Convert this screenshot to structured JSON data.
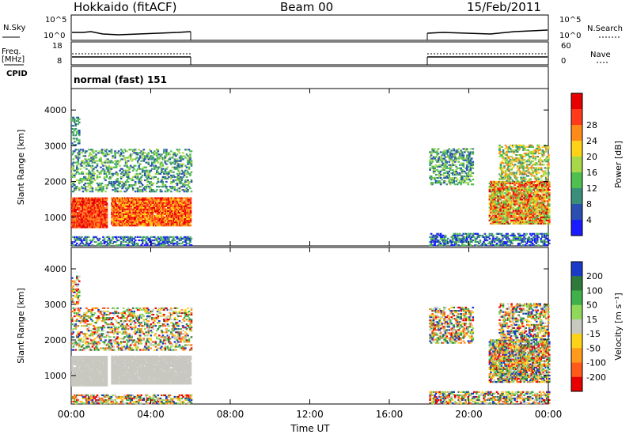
{
  "header": {
    "station": "Hokkaido (fitACF)",
    "beam": "Beam 00",
    "date": "15/Feb/2011"
  },
  "sky_panel": {
    "left_label": "N.Sky",
    "right_label": "N.Search",
    "left_ticks": [
      "10^5",
      "10^0"
    ],
    "right_ticks": [
      "10^5",
      "10^0"
    ]
  },
  "freq_panel": {
    "left_label_1": "Freq.",
    "left_label_2": "[MHz]",
    "right_label": "Nave",
    "left_ticks": [
      "18",
      "8"
    ],
    "right_ticks": [
      "60",
      "0"
    ]
  },
  "cpid": {
    "label": "CPID",
    "value": "normal (fast) 151"
  },
  "chart_data": [
    {
      "type": "heatmap",
      "name": "power",
      "ylabel": "Slant Range [km]",
      "yticks": [
        1000,
        2000,
        3000,
        4000
      ],
      "ylim": [
        200,
        4600
      ],
      "colorbar_label": "Power [dB]",
      "colorbar_ticks": [
        4,
        8,
        12,
        16,
        20,
        24,
        28
      ],
      "colors": [
        "#1a1aff",
        "#2b4fb0",
        "#3a8f7a",
        "#4fbf4f",
        "#a8d84a",
        "#ffd21a",
        "#ff8a1a",
        "#ff3a1a",
        "#e60000"
      ],
      "gaps_utc": [
        [
          "06:00",
          "18:00"
        ]
      ]
    },
    {
      "type": "heatmap",
      "name": "velocity",
      "ylabel": "Slant Range [km]",
      "yticks": [
        1000,
        2000,
        3000,
        4000
      ],
      "ylim": [
        200,
        4600
      ],
      "colorbar_label": "Velocity [m s⁻¹]",
      "colorbar_ticks": [
        200,
        100,
        50,
        15,
        -15,
        -50,
        -100,
        -200
      ],
      "colors": [
        "#1a3ac8",
        "#2f7a3a",
        "#3fb04a",
        "#8fd85a",
        "#c8c8c0",
        "#ffd21a",
        "#ff9a1a",
        "#ff5a1a",
        "#e60000"
      ]
    }
  ],
  "xaxis": {
    "ticks": [
      "00:00",
      "04:00",
      "08:00",
      "12:00",
      "16:00",
      "20:00",
      "00:00"
    ],
    "label": "Time UT"
  }
}
